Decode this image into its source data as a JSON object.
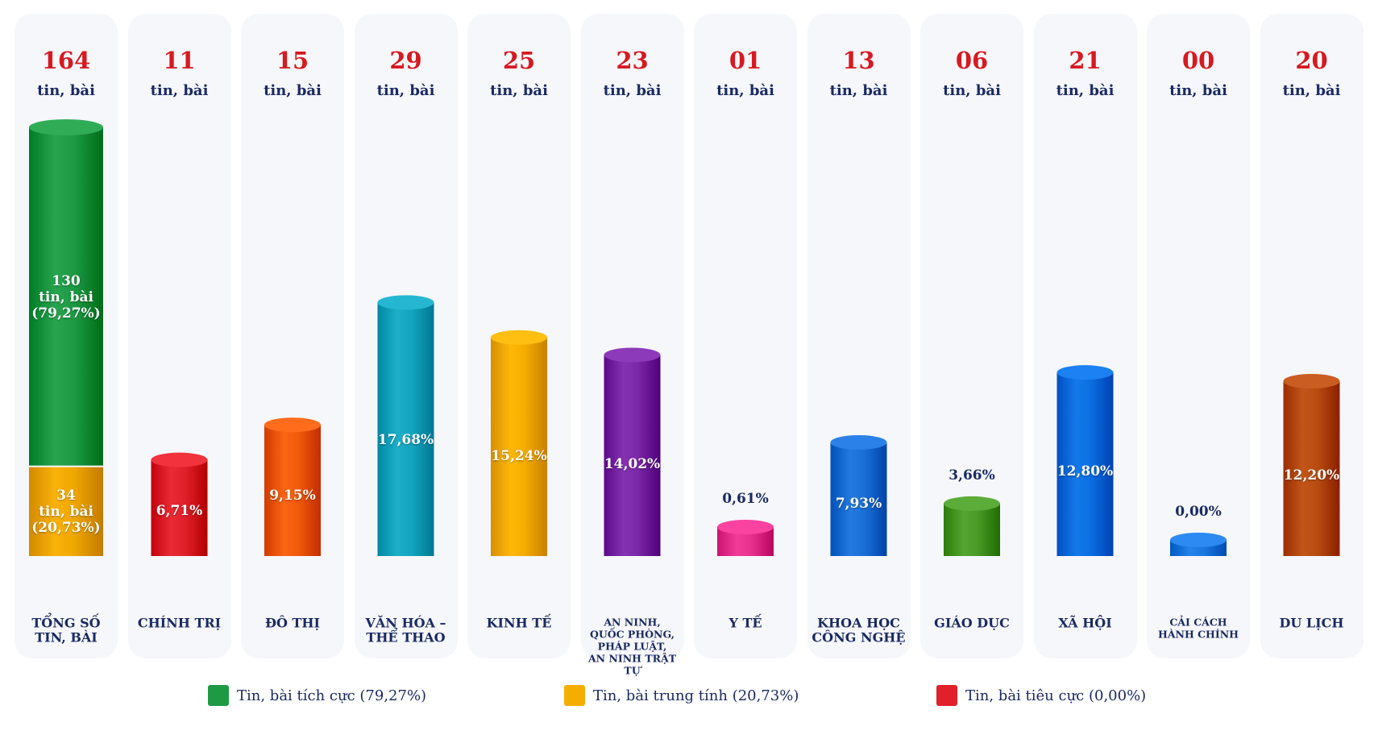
{
  "chart_data": {
    "type": "bar",
    "unit_label": "tin, bài",
    "total": {
      "label": "TỔNG SỐ TIN, BÀI",
      "count_text": "164",
      "segments": [
        {
          "name": "Tin, bài tích cực",
          "value": 130,
          "text": "130\ntin, bài\n(79,27%)",
          "color": "#1e9a45"
        },
        {
          "name": "Tin, bài trung tính",
          "value": 34,
          "text": "34\ntin, bài\n(20,73%)",
          "color": "#f0a800"
        }
      ]
    },
    "categories": [
      {
        "label": "CHÍNH TRỊ",
        "count_text": "11",
        "value": 11,
        "percent": "6,71%",
        "color": "#e0202a",
        "small": false
      },
      {
        "label": "ĐÔ THỊ",
        "count_text": "15",
        "value": 15,
        "percent": "9,15%",
        "color": "#f05a0a",
        "small": false
      },
      {
        "label": "VĂN HÓA –\nTHỂ THAO",
        "count_text": "29",
        "value": 29,
        "percent": "17,68%",
        "color": "#13a5bf",
        "small": false
      },
      {
        "label": "KINH TẾ",
        "count_text": "25",
        "value": 25,
        "percent": "15,24%",
        "color": "#f5ad00",
        "small": false
      },
      {
        "label": "AN NINH,\nQUỐC PHÒNG,\nPHÁP LUẬT,\nAN NINH TRẬT TỰ",
        "count_text": "23",
        "value": 23,
        "percent": "14,02%",
        "color": "#7b28a8",
        "small": true
      },
      {
        "label": "Y TẾ",
        "count_text": "01",
        "value": 1,
        "percent": "0,61%",
        "color": "#e8308f",
        "small": false
      },
      {
        "label": "KHOA HỌC\nCÔNG NGHỆ",
        "count_text": "13",
        "value": 13,
        "percent": "7,93%",
        "color": "#1a6fd6",
        "small": false
      },
      {
        "label": "GIÁO DỤC",
        "count_text": "06",
        "value": 6,
        "percent": "3,66%",
        "color": "#4a9a28",
        "small": false
      },
      {
        "label": "XÃ HỘI",
        "count_text": "21",
        "value": 21,
        "percent": "12,80%",
        "color": "#0a6fe0",
        "small": false
      },
      {
        "label": "CẢI CÁCH\nHÀNH CHÍNH",
        "count_text": "00",
        "value": 0,
        "percent": "0,00%",
        "color": "#1a78e0",
        "small": true
      },
      {
        "label": "DU LỊCH",
        "count_text": "20",
        "value": 20,
        "percent": "12,20%",
        "color": "#b84c10",
        "small": false
      }
    ],
    "legend": [
      {
        "label": "Tin, bài tích cực (79,27%)",
        "color": "#1e9a45"
      },
      {
        "label": "Tin, bài trung tính (20,73%)",
        "color": "#f5ad00"
      },
      {
        "label": "Tin, bài tiêu cực (0,00%)",
        "color": "#e0202a"
      }
    ]
  }
}
